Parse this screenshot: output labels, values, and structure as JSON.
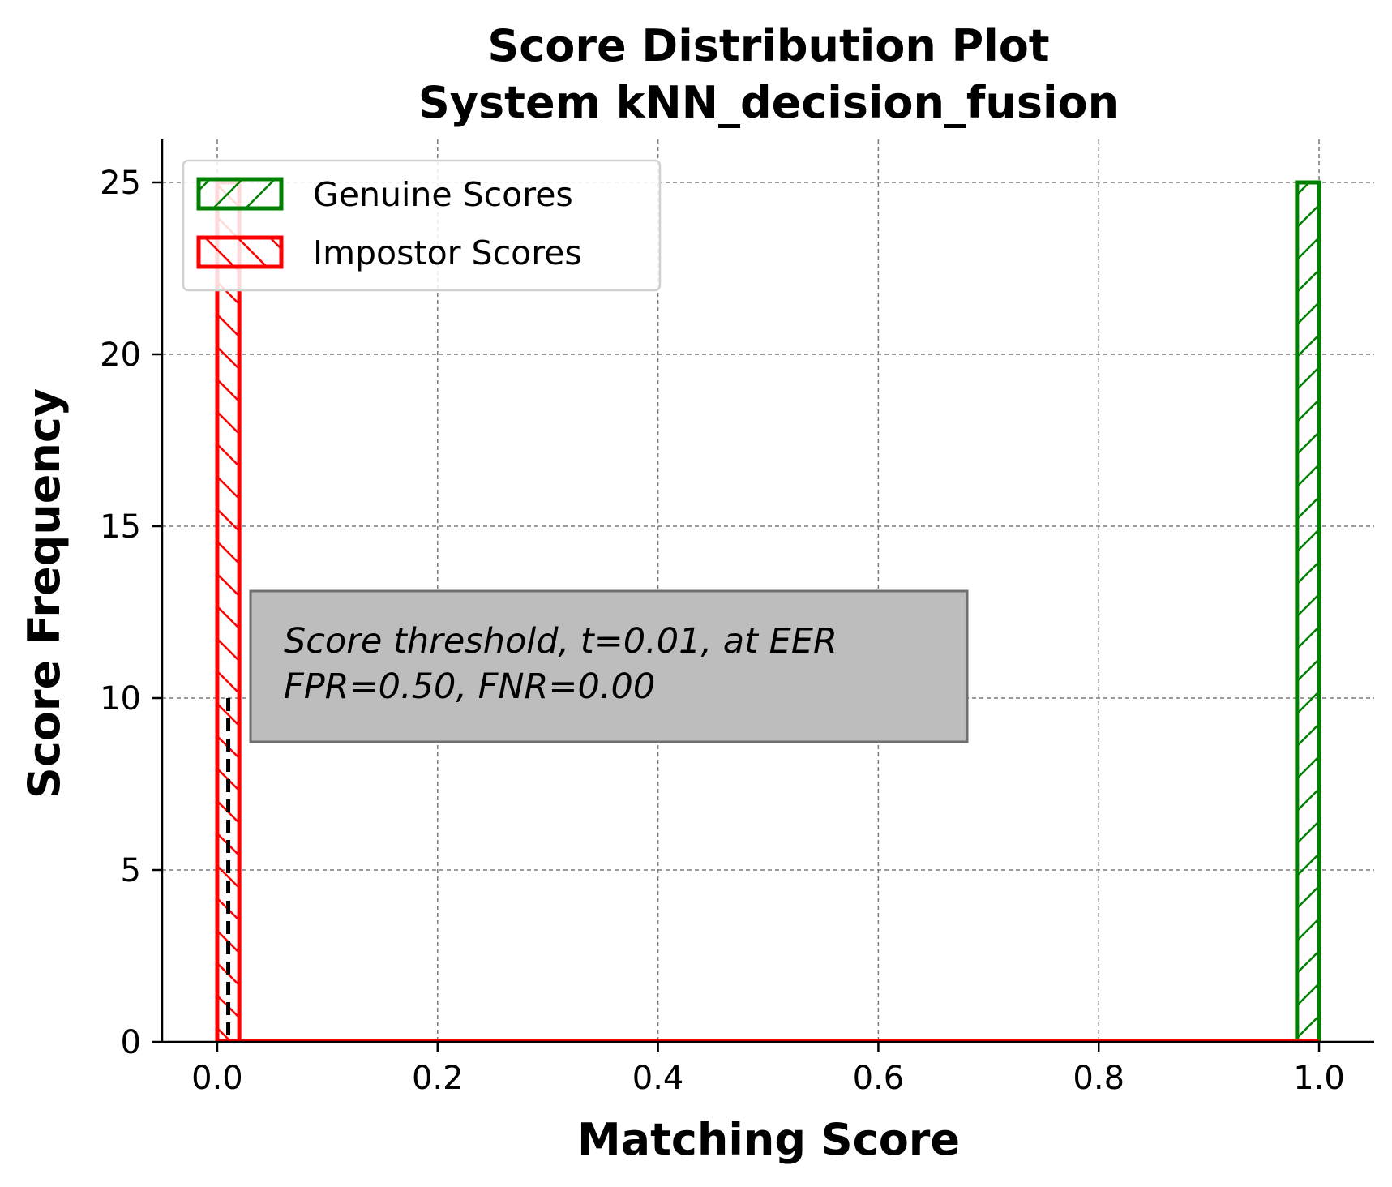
{
  "chart_data": {
    "type": "bar",
    "title": "Score Distribution Plot",
    "subtitle": "System kNN_decision_fusion",
    "xlabel": "Matching Score",
    "ylabel": "Score Frequency",
    "xlim": [
      -0.05,
      1.05
    ],
    "ylim": [
      0,
      26.25
    ],
    "xticks": [
      "0.0",
      "0.2",
      "0.4",
      "0.6",
      "0.8",
      "1.0"
    ],
    "yticks": [
      "0",
      "5",
      "10",
      "15",
      "20",
      "25"
    ],
    "grid": true,
    "legend_position": "top-left",
    "series": [
      {
        "name": "Genuine Scores",
        "color": "#008000",
        "hatch": "forward-slash",
        "bins": [
          [
            0.98,
            1.0,
            25
          ]
        ]
      },
      {
        "name": "Impostor Scores",
        "color": "#ff0000",
        "hatch": "back-slash",
        "bins": [
          [
            0.0,
            0.02,
            25
          ]
        ]
      }
    ],
    "threshold": {
      "x": 0.01,
      "ymax": 10
    },
    "annotation": {
      "line1": "Score threshold, t=0.01, at EER",
      "line2": "FPR=0.50, FNR=0.00"
    }
  }
}
